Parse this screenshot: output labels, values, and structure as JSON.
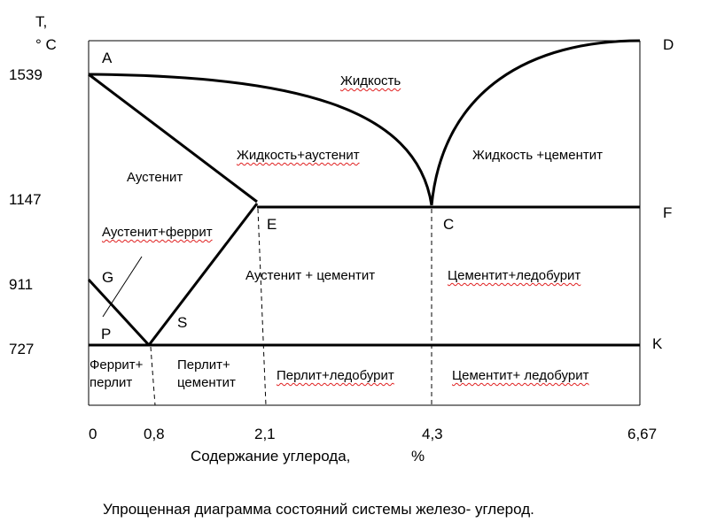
{
  "y_axis": {
    "title_line1": "T,",
    "title_line2": "° C",
    "ticks": [
      "1539",
      "1147",
      "911",
      "727"
    ]
  },
  "x_axis": {
    "ticks": [
      "0",
      "0,8",
      "2,1",
      "4,3",
      "6,67"
    ],
    "label": "Содержание углерода,",
    "unit": "%"
  },
  "points": {
    "A": "A",
    "D": "D",
    "E": "E",
    "C": "C",
    "F": "F",
    "G": "G",
    "P": "P",
    "S": "S",
    "K": "K"
  },
  "phases": {
    "liquid": "Жидкость",
    "liquid_austenite": "Жидкость+аустенит",
    "liquid_cementite": "Жидкость +цементит",
    "austenite": "Аустенит",
    "austenite_ferrite": "Аустенит+феррит",
    "austenite_cementite": "Аустенит + цементит",
    "cementite_ledeburite_upper": "Цементит+ледобурит",
    "ferrite_pearlite_line1": "Феррит+",
    "ferrite_pearlite_line2": "перлит",
    "pearlite_cementite_line1": "Перлит+",
    "pearlite_cementite_line2": "цементит",
    "pearlite_ledeburite": "Перлит+ледобурит",
    "cementite_ledeburite_lower": "Цементит+  ледобурит"
  },
  "caption": "Упрощенная   диаграмма состояний системы железо- углерод.",
  "colors": {
    "line": "#000000",
    "spellcheck_underline": "#e02020"
  }
}
